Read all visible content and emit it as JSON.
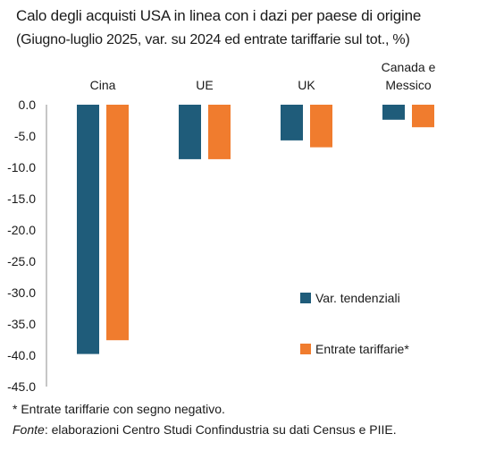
{
  "chart_data": {
    "type": "bar",
    "title": "Calo degli acquisti USA in linea con i dazi per paese di origine",
    "subtitle": "(Giugno-luglio 2025, var. su 2024 ed entrate tariffarie sul tot., %)",
    "categories": [
      "Cina",
      "UE",
      "UK",
      "Canada e\nMessico"
    ],
    "series": [
      {
        "name": "Var. tendenziali",
        "values": [
          -39.8,
          -8.7,
          -5.7,
          -2.4
        ],
        "color": "#1f5c7a"
      },
      {
        "name": "Entrate tariffarie*",
        "values": [
          -37.6,
          -8.7,
          -6.8,
          -3.6
        ],
        "color": "#f07c2e"
      }
    ],
    "ylim": [
      -45,
      0
    ],
    "yticks": [
      "0.0",
      "-5.0",
      "-10.0",
      "-15.0",
      "-20.0",
      "-25.0",
      "-30.0",
      "-35.0",
      "-40.0",
      "-45.0"
    ],
    "ytick_values": [
      0,
      -5,
      -10,
      -15,
      -20,
      -25,
      -30,
      -35,
      -40,
      -45
    ],
    "grid": false,
    "legend_position": "bottom-right",
    "xlabel": "",
    "ylabel": ""
  },
  "footer": {
    "note": "* Entrate tariffarie con segno negativo.",
    "source_label": "Fonte",
    "source_text": ": elaborazioni Centro Studi Confindustria su dati Census e PIIE."
  }
}
